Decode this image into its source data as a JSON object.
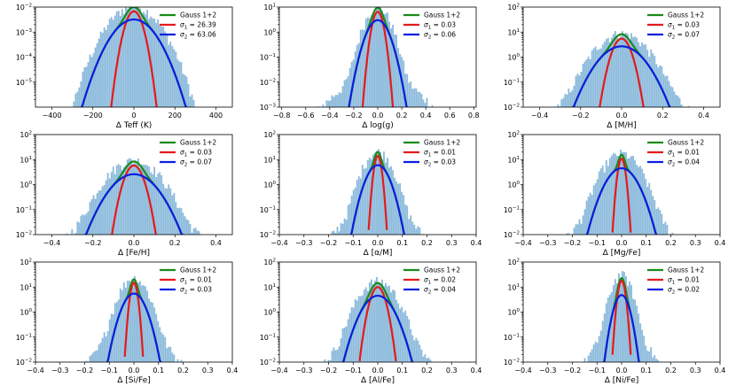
{
  "colors": {
    "histogram": "#8dbbdc",
    "gauss_sum": "#1a8a1a",
    "gauss_narrow": "#e41a1c",
    "gauss_wide": "#0a1ee0"
  },
  "legend_labels": {
    "sum": "Gauss 1+2",
    "narrow_prefix": "σ",
    "narrow_sub": "1",
    "wide_prefix": "σ",
    "wide_sub": "2"
  },
  "chart_data": [
    {
      "type": "histogram",
      "xlabel": "Δ Teff (K)",
      "xlim": [
        -480,
        480
      ],
      "ylim_log10": [
        -6,
        -2
      ],
      "xticks": [
        -400,
        -200,
        0,
        200,
        400
      ],
      "xtick_labels": [
        "−400",
        "−200",
        "0",
        "200",
        "400"
      ],
      "ytick_exps": [
        -5,
        -4,
        -3,
        -2
      ],
      "sigma1": 26.39,
      "sigma2": 63.06,
      "sigma1_label": "26.39",
      "sigma2_label": "63.06",
      "peak_sum": 0.0105,
      "peak1": 0.0068,
      "peak2": 0.0032,
      "hist_sigma": 70,
      "hist_tail_scale": 85,
      "hist_tail_amp": 0.00018
    },
    {
      "type": "histogram",
      "xlabel": "Δ log(g)",
      "xlim": [
        -0.82,
        0.82
      ],
      "ylim_log10": [
        -3,
        1
      ],
      "xticks": [
        -0.8,
        -0.6,
        -0.4,
        -0.2,
        0.0,
        0.2,
        0.4,
        0.6,
        0.8
      ],
      "xtick_labels": [
        "−0.8",
        "−0.6",
        "−0.4",
        "−0.2",
        "0.0",
        "0.2",
        "0.4",
        "0.6",
        "0.8"
      ],
      "ytick_exps": [
        -3,
        -2,
        -1,
        0,
        1
      ],
      "sigma1": 0.03,
      "sigma2": 0.06,
      "sigma1_label": "0.03",
      "sigma2_label": "0.06",
      "peak_sum": 9.5,
      "peak1": 6.5,
      "peak2": 3.0,
      "hist_sigma": 0.065,
      "hist_tail_scale": 0.1,
      "hist_tail_amp": 0.12
    },
    {
      "type": "histogram",
      "xlabel": "Δ [M/H]",
      "xlim": [
        -0.48,
        0.48
      ],
      "ylim_log10": [
        -2,
        2
      ],
      "xticks": [
        -0.4,
        -0.2,
        0.0,
        0.2,
        0.4
      ],
      "xtick_labels": [
        "−0.4",
        "−0.2",
        "0.0",
        "0.2",
        "0.4"
      ],
      "ytick_exps": [
        -2,
        -1,
        0,
        1,
        2
      ],
      "sigma1": 0.03,
      "sigma2": 0.07,
      "sigma1_label": "0.03",
      "sigma2_label": "0.07",
      "peak_sum": 8.5,
      "peak1": 5.5,
      "peak2": 2.7,
      "hist_sigma": 0.075,
      "hist_tail_scale": 0.09,
      "hist_tail_amp": 0.35
    },
    {
      "type": "histogram",
      "xlabel": "Δ [Fe/H]",
      "xlim": [
        -0.48,
        0.48
      ],
      "ylim_log10": [
        -2,
        2
      ],
      "xticks": [
        -0.4,
        -0.2,
        0.0,
        0.2,
        0.4
      ],
      "xtick_labels": [
        "−0.4",
        "−0.2",
        "0.0",
        "0.2",
        "0.4"
      ],
      "ytick_exps": [
        -2,
        -1,
        0,
        1,
        2
      ],
      "sigma1": 0.03,
      "sigma2": 0.07,
      "sigma1_label": "0.03",
      "sigma2_label": "0.07",
      "peak_sum": 9.0,
      "peak1": 5.8,
      "peak2": 2.6,
      "hist_sigma": 0.075,
      "hist_tail_scale": 0.09,
      "hist_tail_amp": 0.35
    },
    {
      "type": "histogram",
      "xlabel": "Δ [α/M]",
      "xlim": [
        -0.4,
        0.4
      ],
      "ylim_log10": [
        -2,
        2
      ],
      "xticks": [
        -0.4,
        -0.3,
        -0.2,
        -0.1,
        0.0,
        0.1,
        0.2,
        0.3,
        0.4
      ],
      "xtick_labels": [
        "−0.4",
        "−0.3",
        "−0.2",
        "−0.1",
        "0.0",
        "0.1",
        "0.2",
        "0.3",
        "0.4"
      ],
      "ytick_exps": [
        -2,
        -1,
        0,
        1,
        2
      ],
      "sigma1": 0.01,
      "sigma2": 0.03,
      "sigma1_label": "0.01",
      "sigma2_label": "0.03",
      "peak_sum": 20,
      "peak1": 14,
      "peak2": 6,
      "hist_sigma": 0.035,
      "hist_tail_scale": 0.04,
      "hist_tail_amp": 0.5
    },
    {
      "type": "histogram",
      "xlabel": "Δ [Mg/Fe]",
      "xlim": [
        -0.4,
        0.4
      ],
      "ylim_log10": [
        -2,
        2
      ],
      "xticks": [
        -0.4,
        -0.3,
        -0.2,
        -0.1,
        0.0,
        0.1,
        0.2,
        0.3,
        0.4
      ],
      "xtick_labels": [
        "−0.4",
        "−0.3",
        "−0.2",
        "−0.1",
        "0.0",
        "0.1",
        "0.2",
        "0.3",
        "0.4"
      ],
      "ytick_exps": [
        -2,
        -1,
        0,
        1,
        2
      ],
      "sigma1": 0.01,
      "sigma2": 0.04,
      "sigma1_label": "0.01",
      "sigma2_label": "0.04",
      "peak_sum": 17,
      "peak1": 11,
      "peak2": 4.5,
      "hist_sigma": 0.045,
      "hist_tail_scale": 0.05,
      "hist_tail_amp": 0.4
    },
    {
      "type": "histogram",
      "xlabel": "Δ [Si/Fe]",
      "xlim": [
        -0.4,
        0.4
      ],
      "ylim_log10": [
        -2,
        2
      ],
      "xticks": [
        -0.4,
        -0.3,
        -0.2,
        -0.1,
        0.0,
        0.1,
        0.2,
        0.3,
        0.4
      ],
      "xtick_labels": [
        "−0.4",
        "−0.3",
        "−0.2",
        "−0.1",
        "0.0",
        "0.1",
        "0.2",
        "0.3",
        "0.4"
      ],
      "ytick_exps": [
        -2,
        -1,
        0,
        1,
        2
      ],
      "sigma1": 0.01,
      "sigma2": 0.03,
      "sigma1_label": "0.01",
      "sigma2_label": "0.03",
      "peak_sum": 22,
      "peak1": 15,
      "peak2": 5.5,
      "hist_sigma": 0.035,
      "hist_tail_scale": 0.04,
      "hist_tail_amp": 0.5
    },
    {
      "type": "histogram",
      "xlabel": "Δ [Al/Fe]",
      "xlim": [
        -0.4,
        0.4
      ],
      "ylim_log10": [
        -2,
        2
      ],
      "xticks": [
        -0.4,
        -0.3,
        -0.2,
        -0.1,
        0.0,
        0.1,
        0.2,
        0.3,
        0.4
      ],
      "xtick_labels": [
        "−0.4",
        "−0.3",
        "−0.2",
        "−0.1",
        "0.0",
        "0.1",
        "0.2",
        "0.3",
        "0.4"
      ],
      "ytick_exps": [
        -2,
        -1,
        0,
        1,
        2
      ],
      "sigma1": 0.02,
      "sigma2": 0.04,
      "sigma1_label": "0.02",
      "sigma2_label": "0.04",
      "peak_sum": 17,
      "peak1": 10,
      "peak2": 4.5,
      "hist_sigma": 0.045,
      "hist_tail_scale": 0.05,
      "hist_tail_amp": 0.45
    },
    {
      "type": "histogram",
      "xlabel": "Δ [Ni/Fe]",
      "xlim": [
        -0.4,
        0.4
      ],
      "ylim_log10": [
        -2,
        2
      ],
      "xticks": [
        -0.4,
        -0.3,
        -0.2,
        -0.1,
        0.0,
        0.1,
        0.2,
        0.3,
        0.4
      ],
      "xtick_labels": [
        "−0.4",
        "−0.3",
        "−0.2",
        "−0.1",
        "0.0",
        "0.1",
        "0.2",
        "0.3",
        "0.4"
      ],
      "ytick_exps": [
        -2,
        -1,
        0,
        1,
        2
      ],
      "sigma1": 0.01,
      "sigma2": 0.02,
      "sigma1_label": "0.01",
      "sigma2_label": "0.02",
      "peak_sum": 30,
      "peak1": 18,
      "peak2": 4.8,
      "hist_sigma": 0.025,
      "hist_tail_scale": 0.03,
      "hist_tail_amp": 0.5
    }
  ]
}
